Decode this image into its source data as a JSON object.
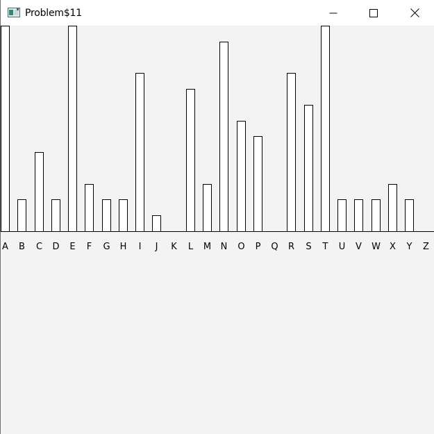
{
  "window": {
    "title": "Problem$11",
    "icon": "java-app-icon",
    "controls": [
      "minimize-icon",
      "maximize-icon",
      "close-icon"
    ]
  },
  "chart_data": {
    "type": "bar",
    "categories": [
      "A",
      "B",
      "C",
      "D",
      "E",
      "F",
      "G",
      "H",
      "I",
      "J",
      "K",
      "L",
      "M",
      "N",
      "O",
      "P",
      "Q",
      "R",
      "S",
      "T",
      "U",
      "V",
      "W",
      "X",
      "Y",
      "Z"
    ],
    "values": [
      13,
      2,
      5,
      2,
      13,
      3,
      2,
      2,
      10,
      1,
      0,
      9,
      3,
      12,
      7,
      6,
      0,
      10,
      8,
      13,
      2,
      2,
      2,
      3,
      2,
      0
    ],
    "ylim": [
      0,
      13
    ],
    "bar_fill": "#ffffff",
    "bar_stroke": "#000000",
    "axis_color": "#000000",
    "background": "#f3f3f3",
    "grid": false
  }
}
